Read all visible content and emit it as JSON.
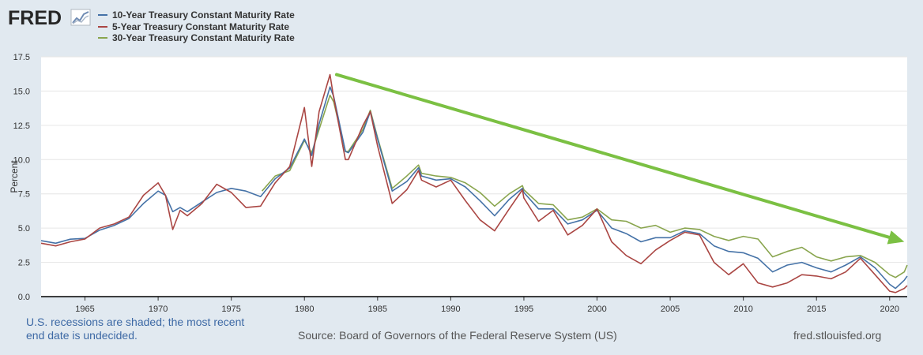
{
  "brand": {
    "logo_text": "FRED",
    "logo_icon": "line-chart-icon"
  },
  "footer": {
    "note_line1": "U.S. recessions are shaded; the most recent",
    "note_line2": "end date is undecided.",
    "source": "Source: Board of Governors of the Federal Reserve System (US)",
    "site": "fred.stlouisfed.org"
  },
  "chart_data": {
    "type": "line",
    "title": "",
    "xlabel": "",
    "ylabel": "Percent",
    "xlim": [
      1962,
      2021.2
    ],
    "ylim": [
      0,
      17.5
    ],
    "x_ticks": [
      1965,
      1970,
      1975,
      1980,
      1985,
      1990,
      1995,
      2000,
      2005,
      2010,
      2015,
      2020
    ],
    "y_ticks": [
      0.0,
      2.5,
      5.0,
      7.5,
      10.0,
      12.5,
      15.0,
      17.5
    ],
    "y_tick_labels": [
      "0.0",
      "2.5",
      "5.0",
      "7.5",
      "10.0",
      "12.5",
      "15.0",
      "17.5"
    ],
    "grid": "horizontal",
    "legend_position": "top-left",
    "series": [
      {
        "name": "10-Year Treasury Constant Maturity Rate",
        "color": "#4572a7",
        "points": [
          [
            1962,
            4.08
          ],
          [
            1963,
            3.9
          ],
          [
            1964,
            4.19
          ],
          [
            1965,
            4.25
          ],
          [
            1966,
            4.85
          ],
          [
            1967,
            5.2
          ],
          [
            1968,
            5.7
          ],
          [
            1969,
            6.8
          ],
          [
            1970,
            7.7
          ],
          [
            1970.5,
            7.4
          ],
          [
            1971,
            6.2
          ],
          [
            1971.5,
            6.5
          ],
          [
            1972,
            6.2
          ],
          [
            1973,
            6.9
          ],
          [
            1974,
            7.6
          ],
          [
            1975,
            7.9
          ],
          [
            1976,
            7.7
          ],
          [
            1977,
            7.3
          ],
          [
            1978,
            8.6
          ],
          [
            1979,
            9.4
          ],
          [
            1980,
            11.5
          ],
          [
            1980.5,
            10.3
          ],
          [
            1981,
            12.6
          ],
          [
            1981.75,
            15.3
          ],
          [
            1982,
            14.6
          ],
          [
            1982.8,
            10.6
          ],
          [
            1983,
            10.5
          ],
          [
            1984,
            12.0
          ],
          [
            1984.5,
            13.5
          ],
          [
            1985,
            11.5
          ],
          [
            1986,
            7.7
          ],
          [
            1987,
            8.4
          ],
          [
            1987.8,
            9.4
          ],
          [
            1988,
            8.8
          ],
          [
            1989,
            8.5
          ],
          [
            1990,
            8.6
          ],
          [
            1991,
            8.0
          ],
          [
            1992,
            7.0
          ],
          [
            1993,
            5.9
          ],
          [
            1994,
            7.1
          ],
          [
            1994.9,
            7.9
          ],
          [
            1995,
            7.6
          ],
          [
            1996,
            6.4
          ],
          [
            1997,
            6.4
          ],
          [
            1998,
            5.3
          ],
          [
            1999,
            5.6
          ],
          [
            2000,
            6.3
          ],
          [
            2001,
            5.0
          ],
          [
            2002,
            4.6
          ],
          [
            2003,
            4.0
          ],
          [
            2004,
            4.3
          ],
          [
            2005,
            4.3
          ],
          [
            2006,
            4.8
          ],
          [
            2007,
            4.6
          ],
          [
            2008,
            3.7
          ],
          [
            2009,
            3.3
          ],
          [
            2010,
            3.2
          ],
          [
            2011,
            2.8
          ],
          [
            2012,
            1.8
          ],
          [
            2013,
            2.3
          ],
          [
            2014,
            2.5
          ],
          [
            2015,
            2.1
          ],
          [
            2016,
            1.8
          ],
          [
            2017,
            2.3
          ],
          [
            2018,
            2.9
          ],
          [
            2019,
            2.1
          ],
          [
            2020,
            0.9
          ],
          [
            2020.4,
            0.6
          ],
          [
            2021,
            1.2
          ],
          [
            2021.2,
            1.5
          ]
        ]
      },
      {
        "name": "5-Year Treasury Constant Maturity Rate",
        "color": "#aa4643",
        "points": [
          [
            1962,
            3.9
          ],
          [
            1963,
            3.7
          ],
          [
            1964,
            4.0
          ],
          [
            1965,
            4.2
          ],
          [
            1966,
            5.0
          ],
          [
            1967,
            5.3
          ],
          [
            1968,
            5.8
          ],
          [
            1969,
            7.4
          ],
          [
            1970,
            8.3
          ],
          [
            1970.5,
            7.4
          ],
          [
            1971,
            4.9
          ],
          [
            1971.5,
            6.3
          ],
          [
            1972,
            5.9
          ],
          [
            1973,
            6.8
          ],
          [
            1974,
            8.2
          ],
          [
            1975,
            7.6
          ],
          [
            1976,
            6.5
          ],
          [
            1977,
            6.6
          ],
          [
            1978,
            8.3
          ],
          [
            1979,
            9.5
          ],
          [
            1980,
            13.8
          ],
          [
            1980.5,
            9.5
          ],
          [
            1981,
            13.5
          ],
          [
            1981.75,
            16.2
          ],
          [
            1982,
            14.5
          ],
          [
            1982.8,
            10.0
          ],
          [
            1983,
            10.0
          ],
          [
            1984,
            12.5
          ],
          [
            1984.5,
            13.5
          ],
          [
            1985,
            11.0
          ],
          [
            1986,
            6.8
          ],
          [
            1987,
            7.8
          ],
          [
            1987.8,
            9.2
          ],
          [
            1988,
            8.5
          ],
          [
            1989,
            8.0
          ],
          [
            1990,
            8.5
          ],
          [
            1991,
            7.0
          ],
          [
            1992,
            5.6
          ],
          [
            1993,
            4.8
          ],
          [
            1994,
            6.4
          ],
          [
            1994.9,
            7.8
          ],
          [
            1995,
            7.2
          ],
          [
            1996,
            5.5
          ],
          [
            1997,
            6.3
          ],
          [
            1998,
            4.5
          ],
          [
            1999,
            5.2
          ],
          [
            2000,
            6.4
          ],
          [
            2001,
            4.0
          ],
          [
            2002,
            3.0
          ],
          [
            2003,
            2.4
          ],
          [
            2004,
            3.4
          ],
          [
            2005,
            4.1
          ],
          [
            2006,
            4.7
          ],
          [
            2007,
            4.5
          ],
          [
            2008,
            2.5
          ],
          [
            2009,
            1.6
          ],
          [
            2010,
            2.4
          ],
          [
            2011,
            1.0
          ],
          [
            2012,
            0.7
          ],
          [
            2013,
            1.0
          ],
          [
            2014,
            1.6
          ],
          [
            2015,
            1.5
          ],
          [
            2016,
            1.3
          ],
          [
            2017,
            1.8
          ],
          [
            2018,
            2.8
          ],
          [
            2019,
            1.6
          ],
          [
            2020,
            0.4
          ],
          [
            2020.4,
            0.3
          ],
          [
            2021,
            0.6
          ],
          [
            2021.2,
            0.8
          ]
        ]
      },
      {
        "name": "30-Year Treasury Constant Maturity Rate",
        "color": "#89a54e",
        "points": [
          [
            1977.1,
            7.7
          ],
          [
            1978,
            8.8
          ],
          [
            1979,
            9.2
          ],
          [
            1980,
            11.4
          ],
          [
            1980.5,
            10.5
          ],
          [
            1981,
            12.2
          ],
          [
            1981.75,
            14.7
          ],
          [
            1982,
            14.2
          ],
          [
            1982.8,
            10.6
          ],
          [
            1983,
            10.6
          ],
          [
            1984,
            12.2
          ],
          [
            1984.5,
            13.6
          ],
          [
            1985,
            11.6
          ],
          [
            1986,
            7.9
          ],
          [
            1987,
            8.8
          ],
          [
            1987.8,
            9.6
          ],
          [
            1988,
            9.0
          ],
          [
            1989,
            8.8
          ],
          [
            1990,
            8.7
          ],
          [
            1991,
            8.3
          ],
          [
            1992,
            7.6
          ],
          [
            1993,
            6.6
          ],
          [
            1994,
            7.5
          ],
          [
            1994.9,
            8.1
          ],
          [
            1995,
            7.8
          ],
          [
            1996,
            6.8
          ],
          [
            1997,
            6.7
          ],
          [
            1998,
            5.6
          ],
          [
            1999,
            5.8
          ],
          [
            2000,
            6.4
          ],
          [
            2001,
            5.6
          ],
          [
            2002,
            5.5
          ],
          [
            2003,
            5.0
          ],
          [
            2004,
            5.2
          ],
          [
            2005,
            4.7
          ],
          [
            2006,
            5.0
          ],
          [
            2007,
            4.9
          ],
          [
            2008,
            4.4
          ],
          [
            2009,
            4.1
          ],
          [
            2010,
            4.4
          ],
          [
            2011,
            4.2
          ],
          [
            2012,
            2.9
          ],
          [
            2013,
            3.3
          ],
          [
            2014,
            3.6
          ],
          [
            2015,
            2.9
          ],
          [
            2016,
            2.6
          ],
          [
            2017,
            2.9
          ],
          [
            2018,
            3.0
          ],
          [
            2019,
            2.5
          ],
          [
            2020,
            1.6
          ],
          [
            2020.4,
            1.4
          ],
          [
            2021,
            1.8
          ],
          [
            2021.2,
            2.3
          ]
        ]
      }
    ],
    "annotations": [
      {
        "type": "arrow",
        "color": "#7bc043",
        "from": [
          1982.2,
          16.2
        ],
        "to": [
          2021.0,
          4.0
        ]
      }
    ]
  }
}
